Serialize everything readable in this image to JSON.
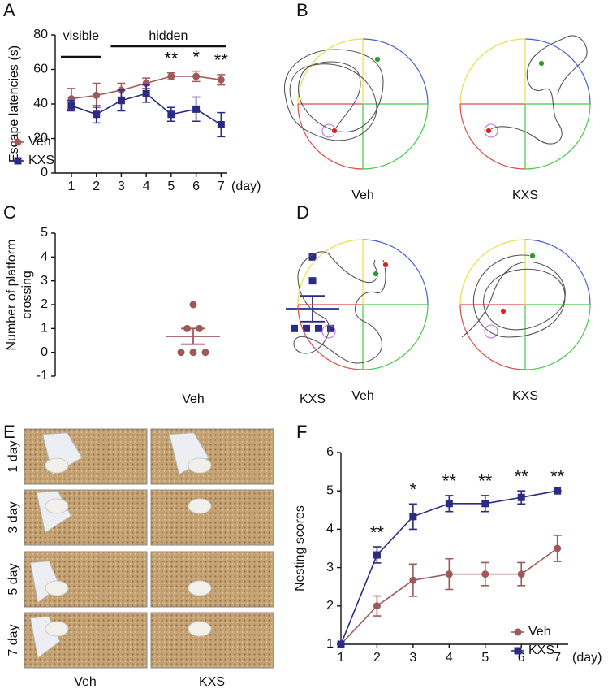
{
  "chart_data": [
    {
      "type": "line",
      "label": "A",
      "ylabel": "Escape latencies (s)",
      "xlabel": "(day)",
      "x": [
        1,
        2,
        3,
        4,
        5,
        6,
        7
      ],
      "xlim": [
        0.35,
        7.25
      ],
      "xticks": [
        1,
        2,
        3,
        4,
        5,
        6,
        7
      ],
      "ylim": [
        0,
        80
      ],
      "yticks": [
        0,
        20,
        40,
        60,
        80
      ],
      "series": [
        {
          "name": "Veh",
          "color": "#a0595b",
          "marker": "circle",
          "values": [
            43,
            45,
            48,
            52,
            56,
            56,
            54
          ],
          "errors": [
            6,
            7,
            4,
            3,
            2,
            3,
            3
          ]
        },
        {
          "name": "KXS",
          "color": "#2b2a84",
          "marker": "square",
          "values": [
            39,
            34,
            42,
            46,
            34,
            37,
            28
          ],
          "errors": [
            3,
            5,
            6,
            5,
            4,
            7,
            7
          ]
        }
      ],
      "brackets": [
        {
          "text": "visible",
          "x": [
            1,
            2
          ]
        },
        {
          "text": "hidden",
          "x": [
            3,
            7
          ]
        }
      ],
      "annotations": [
        {
          "x": 5,
          "text": "**"
        },
        {
          "x": 6,
          "text": "*"
        },
        {
          "x": 7,
          "text": "**"
        }
      ],
      "legend": "lower left"
    },
    {
      "type": "dot",
      "label": "C",
      "ylabel": [
        "Number of platform",
        "crossing"
      ],
      "categories": [
        "Veh",
        "KXS"
      ],
      "ylim": [
        -1,
        5
      ],
      "yticks": [
        -1,
        0,
        1,
        2,
        3,
        4,
        5
      ],
      "groups": [
        {
          "color": "#a0595b",
          "marker": "circle",
          "values": [
            2,
            1,
            1,
            0,
            0,
            0
          ],
          "mean": 0.67,
          "sem": 0.33
        },
        {
          "color": "#2b2a84",
          "marker": "square",
          "values": [
            4,
            3,
            1,
            1,
            1,
            1
          ],
          "mean": 1.83,
          "sem": 0.54
        }
      ]
    },
    {
      "type": "line",
      "label": "F",
      "ylabel": "Nesting scores",
      "xlabel": "(day)",
      "x": [
        1,
        2,
        3,
        4,
        5,
        6,
        7
      ],
      "xlim": [
        1,
        7.3
      ],
      "xticks": [
        1,
        2,
        3,
        4,
        5,
        6,
        7
      ],
      "ylim": [
        1,
        6
      ],
      "yticks": [
        1,
        2,
        3,
        4,
        5,
        6
      ],
      "series": [
        {
          "name": "Veh",
          "color": "#a0595b",
          "marker": "circle",
          "values": [
            1,
            2,
            2.67,
            2.83,
            2.83,
            2.83,
            3.5
          ],
          "errors": [
            0,
            0.26,
            0.42,
            0.4,
            0.3,
            0.3,
            0.34
          ]
        },
        {
          "name": "KXS",
          "color": "#2b2a84",
          "marker": "square",
          "values": [
            1,
            3.33,
            4.33,
            4.67,
            4.67,
            4.83,
            5
          ],
          "errors": [
            0,
            0.21,
            0.33,
            0.21,
            0.21,
            0.17,
            0
          ]
        }
      ],
      "annotations": [
        {
          "x": 2,
          "text": "**"
        },
        {
          "x": 3,
          "text": "*"
        },
        {
          "x": 4,
          "text": "**"
        },
        {
          "x": 5,
          "text": "**"
        },
        {
          "x": 6,
          "text": "**"
        },
        {
          "x": 7,
          "text": "**"
        }
      ],
      "legend": "lower right"
    }
  ],
  "tracks": [
    {
      "label": "B",
      "groups": [
        "Veh",
        "KXS"
      ]
    },
    {
      "label": "D",
      "groups": [
        "Veh",
        "KXS"
      ]
    }
  ],
  "photos": {
    "label": "E",
    "rows": [
      "1 day",
      "3 day",
      "5 day",
      "7 day"
    ],
    "columns": [
      "Veh",
      "KXS"
    ]
  }
}
